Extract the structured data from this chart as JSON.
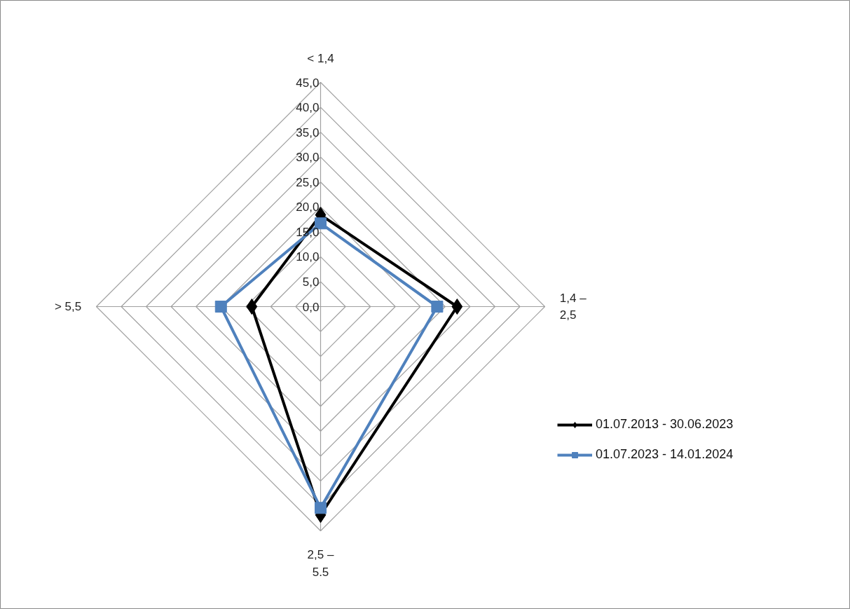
{
  "chart_data": {
    "type": "radar",
    "categories": [
      "< 1,4",
      "1,4 –\n2,5",
      "2,5 –\n5.5",
      "> 5,5"
    ],
    "series": [
      {
        "name": "01.07.2013 - 30.06.2023",
        "color": "#000000",
        "marker": "diamond",
        "values": [
          18.4,
          27.4,
          41.8,
          13.8
        ]
      },
      {
        "name": "01.07.2023 - 14.01.2024",
        "color": "#4f81bd",
        "marker": "square",
        "values": [
          16.7,
          23.4,
          40.4,
          20.0
        ]
      }
    ],
    "ylim": [
      0,
      45
    ],
    "yticks": [
      {
        "value": 0,
        "label": "0,0"
      },
      {
        "value": 5,
        "label": "5,0"
      },
      {
        "value": 10,
        "label": "10,0"
      },
      {
        "value": 15,
        "label": "15,0"
      },
      {
        "value": 20,
        "label": "20,0"
      },
      {
        "value": 25,
        "label": "25,0"
      },
      {
        "value": 30,
        "label": "30,0"
      },
      {
        "value": 35,
        "label": "35,0"
      },
      {
        "value": 40,
        "label": "40,0"
      },
      {
        "value": 45,
        "label": "45,0"
      }
    ],
    "grid": true,
    "legend": "right"
  }
}
